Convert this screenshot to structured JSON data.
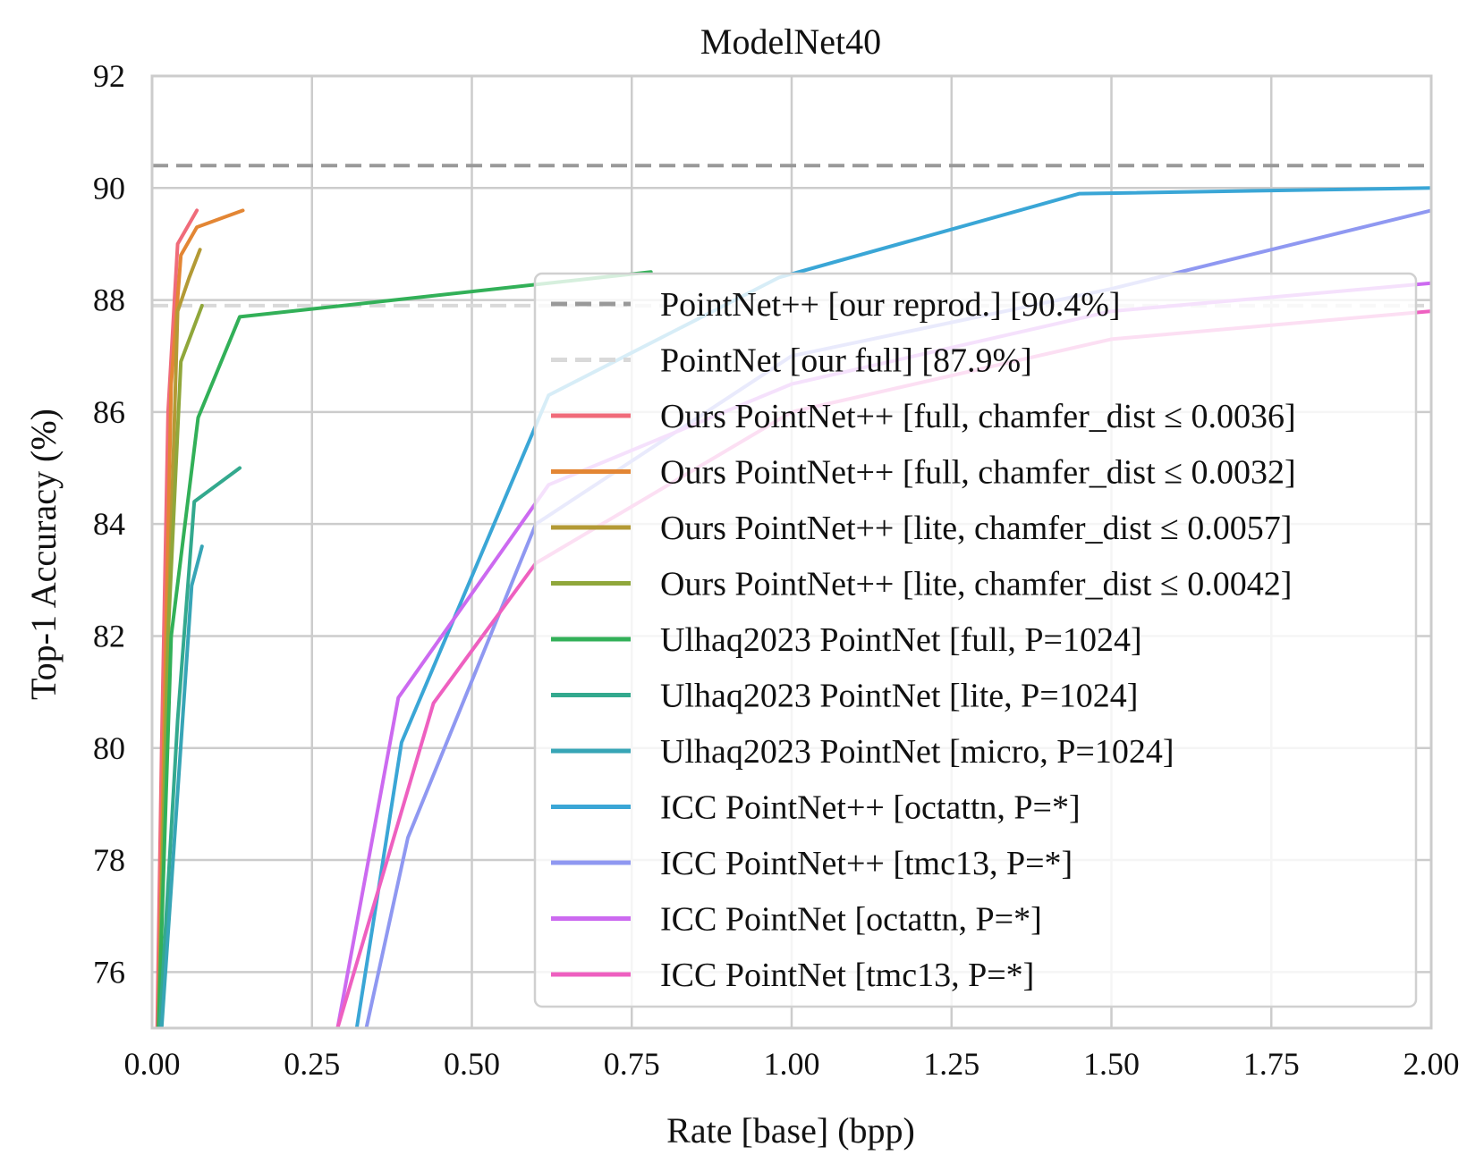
{
  "chart_data": {
    "type": "line",
    "title": "ModelNet40",
    "xlabel": "Rate [base] (bpp)",
    "ylabel": "Top-1 Accuracy (%)",
    "xlim": [
      0,
      2.0
    ],
    "ylim": [
      75,
      92
    ],
    "xticks": [
      "0.00",
      "0.25",
      "0.50",
      "0.75",
      "1.00",
      "1.25",
      "1.50",
      "1.75",
      "2.00"
    ],
    "yticks": [
      "76",
      "78",
      "80",
      "82",
      "84",
      "86",
      "88",
      "90",
      "92"
    ],
    "grid": true,
    "legend_position": "lower-right",
    "reference_lines": [
      {
        "name": "PointNet++ [our reprod.] [90.4%]",
        "y": 90.4,
        "color": "#999999",
        "style": "dashed"
      },
      {
        "name": "PointNet [our full] [87.9%]",
        "y": 87.9,
        "color": "#d9d9d9",
        "style": "dashed"
      }
    ],
    "series": [
      {
        "name": "Ours PointNet++ [full, chamfer_dist ≤ 0.0036]",
        "color": "#f06b7a",
        "x": [
          0.008,
          0.015,
          0.025,
          0.04,
          0.07
        ],
        "y": [
          75.0,
          80.0,
          86.0,
          89.0,
          89.6
        ]
      },
      {
        "name": "Ours PointNet++ [full, chamfer_dist ≤ 0.0032]",
        "color": "#e38634",
        "x": [
          0.01,
          0.02,
          0.03,
          0.045,
          0.07,
          0.142
        ],
        "y": [
          75.0,
          81.0,
          86.5,
          88.8,
          89.3,
          89.6
        ]
      },
      {
        "name": "Ours PointNet++ [lite, chamfer_dist ≤ 0.0057]",
        "color": "#b39a35",
        "x": [
          0.01,
          0.025,
          0.04,
          0.058,
          0.075
        ],
        "y": [
          75.0,
          82.0,
          87.8,
          88.4,
          88.9
        ]
      },
      {
        "name": "Ours PointNet++ [lite, chamfer_dist ≤ 0.0042]",
        "color": "#90a73b",
        "x": [
          0.01,
          0.025,
          0.045,
          0.078
        ],
        "y": [
          75.0,
          82.0,
          86.9,
          87.9
        ]
      },
      {
        "name": "Ulhaq2023 PointNet [full, P=1024]",
        "color": "#32b058",
        "x": [
          0.01,
          0.03,
          0.072,
          0.137,
          0.78
        ],
        "y": [
          75.0,
          82.0,
          85.9,
          87.7,
          88.5
        ]
      },
      {
        "name": "Ulhaq2023 PointNet [lite, P=1024]",
        "color": "#33a98e",
        "x": [
          0.012,
          0.04,
          0.066,
          0.137
        ],
        "y": [
          75.0,
          80.5,
          84.4,
          85.0
        ]
      },
      {
        "name": "Ulhaq2023 PointNet [micro, P=1024]",
        "color": "#37a5b6",
        "x": [
          0.015,
          0.062,
          0.078
        ],
        "y": [
          75.0,
          82.9,
          83.6
        ]
      },
      {
        "name": "ICC PointNet++ [octattn, P=*]",
        "color": "#3aa6d6",
        "x": [
          0.32,
          0.39,
          0.62,
          0.98,
          1.45,
          2.0
        ],
        "y": [
          75.0,
          80.1,
          86.3,
          88.4,
          89.9,
          90.0
        ]
      },
      {
        "name": "ICC PointNet++ [tmc13, P=*]",
        "color": "#8f98f1",
        "x": [
          0.335,
          0.4,
          0.6,
          1.0,
          1.5,
          2.0
        ],
        "y": [
          75.0,
          78.4,
          84.0,
          87.0,
          88.2,
          89.6
        ]
      },
      {
        "name": "ICC PointNet [octattn, P=*]",
        "color": "#cc6af0",
        "x": [
          0.29,
          0.385,
          0.62,
          1.0,
          1.5,
          2.0
        ],
        "y": [
          75.0,
          80.9,
          84.7,
          86.5,
          87.8,
          88.3
        ]
      },
      {
        "name": "ICC PointNet [tmc13, P=*]",
        "color": "#ee60c0",
        "x": [
          0.29,
          0.44,
          0.6,
          1.0,
          1.5,
          2.0
        ],
        "y": [
          75.0,
          80.8,
          83.3,
          86.0,
          87.3,
          87.8
        ]
      }
    ]
  }
}
